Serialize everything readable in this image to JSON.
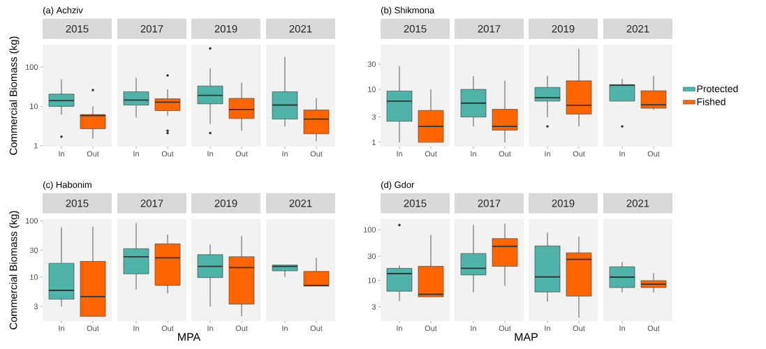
{
  "chart_data": [
    {
      "type": "box",
      "title": "2015",
      "annotations": [
        "(a) Achziv"
      ],
      "ylabel": "Commercial Biomass (kg)",
      "categories": [
        "In",
        "Out"
      ],
      "log": true,
      "ylim": [
        0.95,
        370
      ],
      "yticks": [
        1,
        10,
        100
      ],
      "series": [
        {
          "color": "#4fb3aa",
          "boxes": [
            {
              "low": 6.1,
              "q1": 10,
              "median": 14,
              "q3": 20.5,
              "high": 48,
              "outliers": [
                1.7
              ]
            },
            null
          ]
        },
        {
          "color": "#ff6600",
          "boxes": [
            null,
            {
              "low": 1.5,
              "q1": 2.7,
              "median": 5.8,
              "q3": 6.2,
              "high": 10,
              "outliers": [
                26
              ]
            }
          ]
        }
      ]
    },
    {
      "type": "box",
      "title": "2017",
      "categories": [
        "In",
        "Out"
      ],
      "log": true,
      "ylim": [
        0.95,
        370
      ],
      "tick_labels": "x",
      "series": [
        {
          "color": "#4fb3aa",
          "boxes": [
            {
              "low": 5.2,
              "q1": 10.8,
              "median": 14.4,
              "q3": 23.5,
              "high": 53
            },
            null
          ]
        },
        {
          "color": "#ff6600",
          "boxes": [
            null,
            {
              "low": 5.8,
              "q1": 7.8,
              "median": 12.8,
              "q3": 15.6,
              "high": 27,
              "outliers": [
                61,
                2.4,
                2.1
              ]
            }
          ]
        }
      ]
    },
    {
      "type": "box",
      "title": "2019",
      "categories": [
        "In",
        "Out"
      ],
      "log": true,
      "ylim": [
        0.95,
        370
      ],
      "tick_labels": "x",
      "series": [
        {
          "color": "#4fb3aa",
          "boxes": [
            {
              "low": 3.6,
              "q1": 11.6,
              "median": 19,
              "q3": 33,
              "high": 93,
              "outliers": [
                297,
                2.1
              ]
            },
            null
          ]
        },
        {
          "color": "#ff6600",
          "boxes": [
            null,
            {
              "low": 2.4,
              "q1": 4.9,
              "median": 8.3,
              "q3": 16,
              "high": 40
            }
          ]
        }
      ]
    },
    {
      "type": "box",
      "title": "2021",
      "categories": [
        "In",
        "Out"
      ],
      "log": true,
      "ylim": [
        0.95,
        370
      ],
      "tick_labels": "x",
      "series": [
        {
          "color": "#4fb3aa",
          "boxes": [
            {
              "low": 3.1,
              "q1": 4.75,
              "median": 10.8,
              "q3": 23.5,
              "high": 181
            },
            null
          ]
        },
        {
          "color": "#ff6600",
          "boxes": [
            null,
            {
              "low": 1.3,
              "q1": 2.0,
              "median": 4.75,
              "q3": 8.1,
              "high": 16.3
            }
          ]
        }
      ]
    },
    {
      "type": "box",
      "title": "2015",
      "annotations": [
        "(b) Shikmona"
      ],
      "categories": [
        "In",
        "Out"
      ],
      "log": true,
      "ylim": [
        0.83,
        70
      ],
      "yticks": [
        1,
        3,
        10,
        30
      ],
      "series": [
        {
          "color": "#4fb3aa",
          "boxes": [
            {
              "low": 1.0,
              "q1": 2.5,
              "median": 6.0,
              "q3": 9.3,
              "high": 27.5
            },
            null
          ]
        },
        {
          "color": "#ff6600",
          "boxes": [
            null,
            {
              "low": 1.0,
              "q1": 1.0,
              "median": 2.0,
              "q3": 4.0,
              "high": 10
            }
          ]
        }
      ]
    },
    {
      "type": "box",
      "title": "2017",
      "categories": [
        "In",
        "Out"
      ],
      "log": true,
      "ylim": [
        0.83,
        70
      ],
      "tick_labels": "x",
      "series": [
        {
          "color": "#4fb3aa",
          "boxes": [
            {
              "low": 2.0,
              "q1": 3.0,
              "median": 5.5,
              "q3": 10,
              "high": 17.8
            },
            null
          ]
        },
        {
          "color": "#ff6600",
          "boxes": [
            null,
            {
              "low": 1.0,
              "q1": 1.7,
              "median": 2.0,
              "q3": 4.2,
              "high": 14.7
            }
          ]
        }
      ]
    },
    {
      "type": "box",
      "title": "2019",
      "categories": [
        "In",
        "Out"
      ],
      "log": true,
      "ylim": [
        0.83,
        70
      ],
      "tick_labels": "x",
      "series": [
        {
          "color": "#4fb3aa",
          "boxes": [
            {
              "low": 3.0,
              "q1": 6.0,
              "median": 7.0,
              "q3": 10.9,
              "high": 17.8,
              "outliers": [
                2.0
              ]
            },
            null
          ]
        },
        {
          "color": "#ff6600",
          "boxes": [
            null,
            {
              "low": 2.0,
              "q1": 3.4,
              "median": 5.0,
              "q3": 14.5,
              "high": 59
            }
          ]
        }
      ]
    },
    {
      "type": "box",
      "title": "2021",
      "categories": [
        "In",
        "Out"
      ],
      "log": true,
      "ylim": [
        0.83,
        70
      ],
      "tick_labels": "x",
      "legend": "right",
      "series": [
        {
          "name": "Protected",
          "color": "#4fb3aa",
          "boxes": [
            {
              "low": 6.0,
              "q1": 6.0,
              "median": 12,
              "q3": 12.3,
              "high": 15.6,
              "outliers": [
                2.0
              ]
            },
            null
          ]
        },
        {
          "name": "Fished",
          "color": "#ff6600",
          "boxes": [
            null,
            {
              "low": 4.1,
              "q1": 4.4,
              "median": 5.1,
              "q3": 9.4,
              "high": 17.8
            }
          ]
        }
      ]
    },
    {
      "type": "box",
      "title": "2015",
      "annotations": [
        "(c) Habonim"
      ],
      "ylabel": "Commercial Biomass (kg)",
      "categories": [
        "In",
        "Out"
      ],
      "log": true,
      "ylim": [
        1.65,
        107
      ],
      "yticks": [
        3,
        10,
        30,
        100
      ],
      "series": [
        {
          "color": "#4fb3aa",
          "boxes": [
            {
              "low": 3.0,
              "q1": 4.05,
              "median": 5.8,
              "q3": 17.6,
              "high": 77
            },
            null
          ]
        },
        {
          "color": "#ff6600",
          "boxes": [
            null,
            {
              "low": 2.0,
              "q1": 2.0,
              "median": 4.5,
              "q3": 19,
              "high": 78
            }
          ]
        }
      ]
    },
    {
      "type": "box",
      "title": "2017",
      "xlabel": "MPA",
      "categories": [
        "In",
        "Out"
      ],
      "log": true,
      "ylim": [
        1.65,
        107
      ],
      "tick_labels": "x",
      "series": [
        {
          "color": "#4fb3aa",
          "boxes": [
            {
              "low": 6.0,
              "q1": 11.4,
              "median": 23,
              "q3": 32,
              "high": 91
            },
            null
          ]
        },
        {
          "color": "#ff6600",
          "boxes": [
            null,
            {
              "low": 5.1,
              "q1": 7.1,
              "median": 22,
              "q3": 39,
              "high": 57
            }
          ]
        }
      ]
    },
    {
      "type": "box",
      "title": "2019",
      "categories": [
        "In",
        "Out"
      ],
      "log": true,
      "ylim": [
        1.65,
        107
      ],
      "tick_labels": "x",
      "series": [
        {
          "color": "#4fb3aa",
          "boxes": [
            {
              "low": 3.0,
              "q1": 9.8,
              "median": 15.5,
              "q3": 25,
              "high": 38
            },
            null
          ]
        },
        {
          "color": "#ff6600",
          "boxes": [
            null,
            {
              "low": 2.0,
              "q1": 3.3,
              "median": 14.7,
              "q3": 23,
              "high": 54
            }
          ]
        }
      ]
    },
    {
      "type": "box",
      "title": "2021",
      "categories": [
        "In",
        "Out"
      ],
      "log": true,
      "ylim": [
        1.65,
        107
      ],
      "tick_labels": "x",
      "series": [
        {
          "color": "#4fb3aa",
          "boxes": [
            {
              "low": 10,
              "q1": 12.9,
              "median": 15.5,
              "q3": 16.4,
              "high": 16.4
            },
            null
          ]
        },
        {
          "color": "#ff6600",
          "boxes": [
            null,
            {
              "low": 6.9,
              "q1": 6.9,
              "median": 7.1,
              "q3": 12.6,
              "high": 22
            }
          ]
        }
      ]
    },
    {
      "type": "box",
      "title": "2015",
      "annotations": [
        "(d) Gdor"
      ],
      "categories": [
        "In",
        "Out"
      ],
      "log": true,
      "ylim": [
        1.57,
        162
      ],
      "yticks": [
        3,
        10,
        30,
        100
      ],
      "series": [
        {
          "color": "#4fb3aa",
          "boxes": [
            {
              "low": 3.9,
              "q1": 6.1,
              "median": 13.6,
              "q3": 17.3,
              "high": 19.6,
              "outliers": [
                124
              ]
            },
            null
          ]
        },
        {
          "color": "#ff6600",
          "boxes": [
            null,
            {
              "low": 4.75,
              "q1": 4.75,
              "median": 5.3,
              "q3": 19,
              "high": 79
            }
          ]
        }
      ]
    },
    {
      "type": "box",
      "title": "2017",
      "xlabel": "MAP",
      "categories": [
        "In",
        "Out"
      ],
      "log": true,
      "ylim": [
        1.57,
        162
      ],
      "tick_labels": "x",
      "series": [
        {
          "color": "#4fb3aa",
          "boxes": [
            {
              "low": 5.8,
              "q1": 12.8,
              "median": 17.3,
              "q3": 34,
              "high": 126
            },
            null
          ]
        },
        {
          "color": "#ff6600",
          "boxes": [
            null,
            {
              "low": 7.8,
              "q1": 19,
              "median": 47,
              "q3": 67,
              "high": 131
            }
          ]
        }
      ]
    },
    {
      "type": "box",
      "title": "2019",
      "categories": [
        "In",
        "Out"
      ],
      "log": true,
      "ylim": [
        1.57,
        162
      ],
      "tick_labels": "x",
      "series": [
        {
          "color": "#4fb3aa",
          "boxes": [
            {
              "low": 3.8,
              "q1": 5.9,
              "median": 11.7,
              "q3": 48,
              "high": 88
            },
            null
          ]
        },
        {
          "color": "#ff6600",
          "boxes": [
            null,
            {
              "low": 1.84,
              "q1": 4.9,
              "median": 26,
              "q3": 35,
              "high": 74
            }
          ]
        }
      ]
    },
    {
      "type": "box",
      "title": "2021",
      "categories": [
        "In",
        "Out"
      ],
      "log": true,
      "ylim": [
        1.57,
        162
      ],
      "tick_labels": "x",
      "series": [
        {
          "color": "#4fb3aa",
          "boxes": [
            {
              "low": 5.8,
              "q1": 7.2,
              "median": 11.6,
              "q3": 18.6,
              "high": 23.3
            },
            null
          ]
        },
        {
          "color": "#ff6600",
          "boxes": [
            null,
            {
              "low": 5.8,
              "q1": 7.2,
              "median": 8.4,
              "q3": 9.9,
              "high": 13.9
            }
          ]
        }
      ]
    }
  ]
}
